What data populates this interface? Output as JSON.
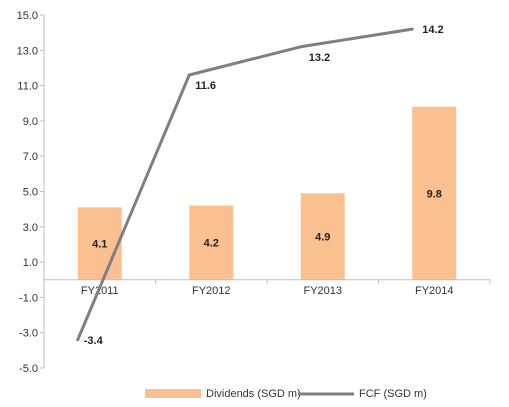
{
  "chart_data": {
    "type": "bar",
    "title": "",
    "xlabel": "",
    "ylabel": "",
    "categories": [
      "FY2011",
      "FY2012",
      "FY2013",
      "FY2014"
    ],
    "ylim": [
      -5.0,
      15.0
    ],
    "yticks": [
      "15.0",
      "13.0",
      "11.0",
      "9.0",
      "7.0",
      "5.0",
      "3.0",
      "1.0",
      "-1.0",
      "-3.0",
      "-5.0"
    ],
    "grid": false,
    "legend_position": "bottom",
    "series": [
      {
        "name": "Dividends (SGD m)",
        "type": "bar",
        "values": [
          4.1,
          4.2,
          4.9,
          9.8
        ],
        "labels": [
          "4.1",
          "4.2",
          "4.9",
          "9.8"
        ],
        "color": "#fac090"
      },
      {
        "name": "FCF (SGD m)",
        "type": "line",
        "values": [
          -3.4,
          11.6,
          13.2,
          14.2
        ],
        "labels": [
          "-3.4",
          "11.6",
          "13.2",
          "14.2"
        ],
        "color": "#7f7f7f"
      }
    ]
  }
}
